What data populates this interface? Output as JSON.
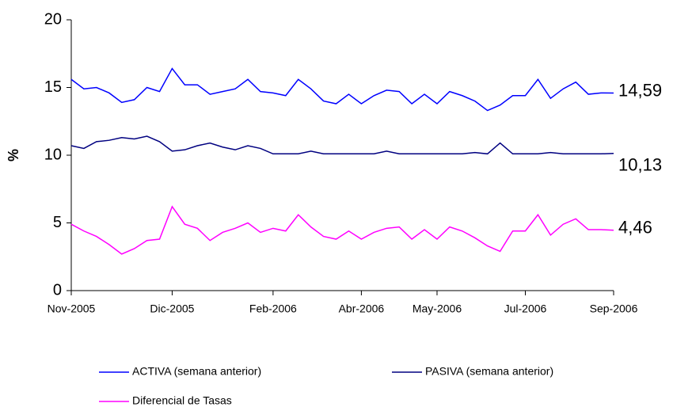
{
  "chart_data": {
    "type": "line",
    "y_label": "%",
    "categories": [
      "Nov-2005",
      null,
      null,
      null,
      null,
      null,
      null,
      null,
      "Dic-2005",
      null,
      null,
      null,
      null,
      null,
      null,
      null,
      "Feb-2006",
      null,
      null,
      null,
      null,
      null,
      null,
      "Abr-2006",
      null,
      null,
      null,
      null,
      null,
      "May-2006",
      null,
      null,
      null,
      null,
      null,
      null,
      "Jul-2006",
      null,
      null,
      null,
      null,
      null,
      null,
      "Sep-2006"
    ],
    "series": [
      {
        "name": "ACTIVA (semana anterior)",
        "color": "#0000ff",
        "values": [
          15.6,
          14.9,
          15.0,
          14.6,
          13.9,
          14.1,
          15.0,
          14.7,
          16.4,
          15.2,
          15.2,
          14.5,
          14.7,
          14.9,
          15.6,
          14.7,
          14.6,
          14.4,
          15.6,
          14.9,
          14.0,
          13.8,
          14.5,
          13.8,
          14.4,
          14.8,
          14.7,
          13.8,
          14.5,
          13.8,
          14.7,
          14.4,
          14.0,
          13.3,
          13.7,
          14.4,
          14.4,
          15.6,
          14.2,
          14.9,
          15.4,
          14.5,
          14.6,
          14.59
        ],
        "value_labels": [
          null,
          null,
          null,
          null,
          null,
          null,
          null,
          null,
          null,
          null,
          null,
          null,
          null,
          null,
          null,
          null,
          null,
          null,
          null,
          null,
          null,
          null,
          null,
          null,
          null,
          null,
          null,
          null,
          null,
          null,
          null,
          null,
          null,
          null,
          null,
          null,
          null,
          null,
          null,
          null,
          null,
          null,
          null,
          "14,59"
        ]
      },
      {
        "name": "PASIVA (semana anterior)",
        "color": "#000080",
        "values": [
          10.7,
          10.5,
          11.0,
          11.1,
          11.3,
          11.2,
          11.4,
          11.0,
          10.3,
          10.4,
          10.7,
          10.9,
          10.6,
          10.4,
          10.7,
          10.5,
          10.1,
          10.1,
          10.1,
          10.3,
          10.1,
          10.1,
          10.1,
          10.1,
          10.1,
          10.3,
          10.1,
          10.1,
          10.1,
          10.1,
          10.1,
          10.1,
          10.2,
          10.1,
          10.9,
          10.1,
          10.1,
          10.1,
          10.2,
          10.1,
          10.1,
          10.1,
          10.1,
          10.13
        ],
        "value_labels": [
          null,
          null,
          null,
          null,
          null,
          null,
          null,
          null,
          null,
          null,
          null,
          null,
          null,
          null,
          null,
          null,
          null,
          null,
          null,
          null,
          null,
          null,
          null,
          null,
          null,
          null,
          null,
          null,
          null,
          null,
          null,
          null,
          null,
          null,
          null,
          null,
          null,
          null,
          null,
          null,
          null,
          null,
          null,
          "10,13"
        ]
      },
      {
        "name": "Diferencial de Tasas",
        "color": "#ff00ff",
        "values": [
          4.9,
          4.4,
          4.0,
          3.4,
          2.7,
          3.1,
          3.7,
          3.8,
          6.2,
          4.9,
          4.6,
          3.7,
          4.3,
          4.6,
          5.0,
          4.3,
          4.6,
          4.4,
          5.6,
          4.7,
          4.0,
          3.8,
          4.4,
          3.8,
          4.3,
          4.6,
          4.7,
          3.8,
          4.5,
          3.8,
          4.7,
          4.4,
          3.9,
          3.3,
          2.9,
          4.4,
          4.4,
          5.6,
          4.1,
          4.9,
          5.3,
          4.5,
          4.5,
          4.46
        ],
        "value_labels": [
          null,
          null,
          null,
          null,
          null,
          null,
          null,
          null,
          null,
          null,
          null,
          null,
          null,
          null,
          null,
          null,
          null,
          null,
          null,
          null,
          null,
          null,
          null,
          null,
          null,
          null,
          null,
          null,
          null,
          null,
          null,
          null,
          null,
          null,
          null,
          null,
          null,
          null,
          null,
          null,
          null,
          null,
          null,
          "4,46"
        ]
      }
    ],
    "ylim": [
      0,
      20
    ],
    "yticks": [
      0,
      5,
      10,
      15,
      20
    ],
    "grid": false,
    "legend": "bottom"
  }
}
